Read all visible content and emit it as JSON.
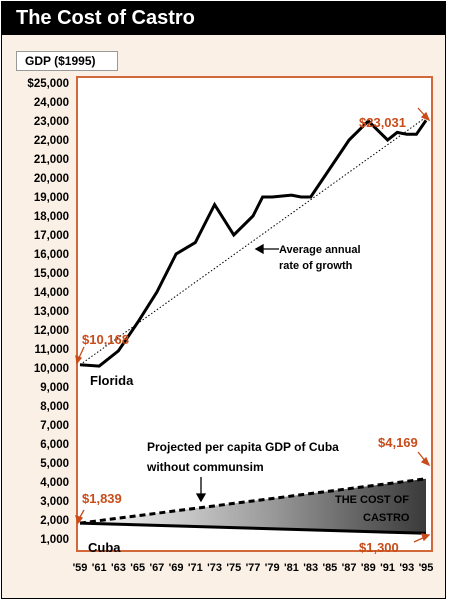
{
  "title": "The Cost of Castro",
  "gdp_label": "GDP ($1995)",
  "colors": {
    "accent": "#c84c1a",
    "frame_border": "#d2673a",
    "background": "#fbf0e6",
    "shade_dark": "#3a3a3a",
    "shade_light": "#ffffff"
  },
  "chart_data": {
    "type": "line",
    "title": "The Cost of Castro",
    "ylabel": "GDP ($1995)",
    "ylim": [
      1000,
      25000
    ],
    "xlim": [
      1959,
      1995
    ],
    "y_ticks": [
      "$25,000",
      "24,000",
      "23,000",
      "22,000",
      "21,000",
      "20,000",
      "19,000",
      "18,000",
      "17,000",
      "16,000",
      "15,000",
      "14,000",
      "13,000",
      "12,000",
      "11,000",
      "10,000",
      "9,000",
      "8,000",
      "7,000",
      "6,000",
      "5,000",
      "4,000",
      "3,000",
      "2,000",
      "1,000"
    ],
    "y_tick_values": [
      25000,
      24000,
      23000,
      22000,
      21000,
      20000,
      19000,
      18000,
      17000,
      16000,
      15000,
      14000,
      13000,
      12000,
      11000,
      10000,
      9000,
      8000,
      7000,
      6000,
      5000,
      4000,
      3000,
      2000,
      1000
    ],
    "x_ticks": [
      "'59",
      "'61",
      "'63",
      "'65",
      "'67",
      "'69",
      "'71",
      "'73",
      "'75",
      "'77",
      "'79",
      "'81",
      "'83",
      "'85",
      "'87",
      "'89",
      "'91",
      "'93",
      "'95"
    ],
    "x_tick_values": [
      1959,
      1961,
      1963,
      1965,
      1967,
      1969,
      1971,
      1973,
      1975,
      1977,
      1979,
      1981,
      1983,
      1985,
      1987,
      1989,
      1991,
      1993,
      1995
    ],
    "series": [
      {
        "name": "Florida",
        "style": "solid",
        "x": [
          1959,
          1961,
          1963,
          1965,
          1967,
          1969,
          1971,
          1973,
          1975,
          1977,
          1978,
          1979,
          1981,
          1982,
          1983,
          1985,
          1987,
          1989,
          1991,
          1992,
          1993,
          1994,
          1995
        ],
        "y": [
          10168,
          10100,
          10900,
          12400,
          14000,
          16000,
          16600,
          18600,
          17000,
          18000,
          19000,
          19000,
          19100,
          19000,
          19000,
          20500,
          22000,
          23000,
          22000,
          22400,
          22300,
          22300,
          23031
        ]
      },
      {
        "name": "Average annual rate of growth",
        "style": "dotted",
        "x": [
          1959,
          1995
        ],
        "y": [
          10168,
          23200
        ]
      },
      {
        "name": "Projected per capita GDP of Cuba without communsim",
        "style": "dashed",
        "x": [
          1959,
          1995
        ],
        "y": [
          1839,
          4169
        ]
      },
      {
        "name": "Cuba",
        "style": "solid",
        "x": [
          1959,
          1995
        ],
        "y": [
          1839,
          1300
        ]
      }
    ],
    "annotations": {
      "florida_start": "$10,168",
      "florida_end": "$23,031",
      "florida_label": "Florida",
      "growth_label_1": "Average annual",
      "growth_label_2": "rate of growth",
      "projected_label_1": "Projected per capita GDP of Cuba",
      "projected_label_2": "without communsim",
      "projected_end": "$4,169",
      "cuba_start": "$1,839",
      "cuba_end": "$1,300",
      "cuba_label": "Cuba",
      "cost_label_1": "THE COST OF",
      "cost_label_2": "CASTRO"
    }
  }
}
